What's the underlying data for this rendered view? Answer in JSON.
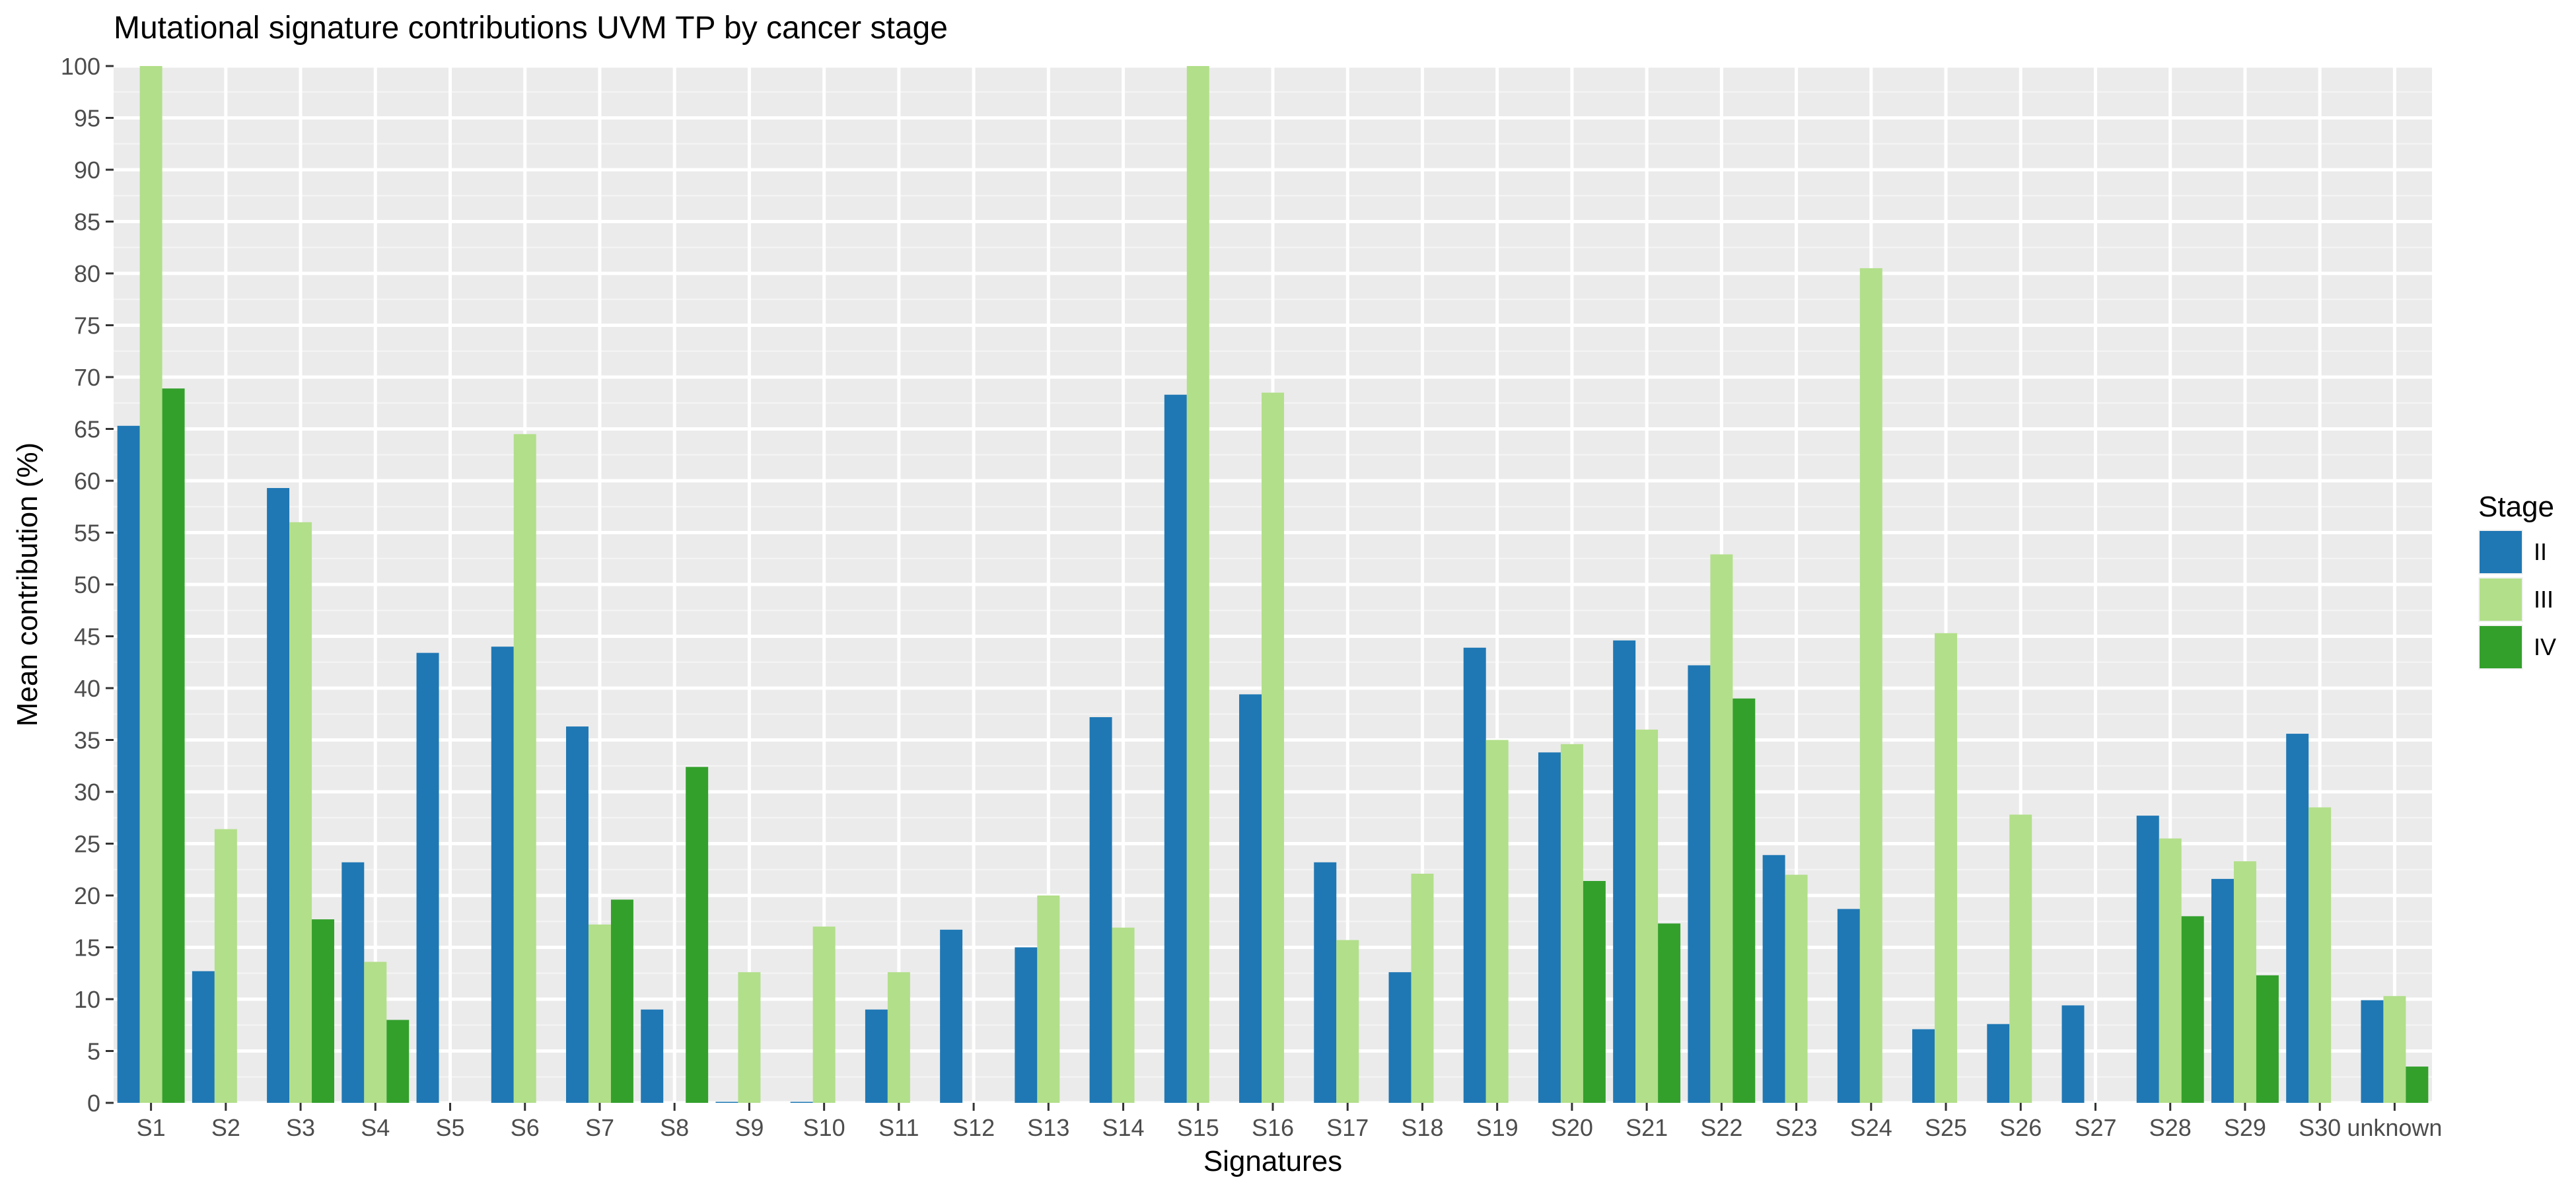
{
  "chart_data": {
    "type": "bar",
    "title": "Mutational signature contributions UVM TP by cancer stage",
    "xlabel": "Signatures",
    "ylabel": "Mean contribution (%)",
    "ylim": [
      0,
      100
    ],
    "yticks": [
      0,
      5,
      10,
      15,
      20,
      25,
      30,
      35,
      40,
      45,
      50,
      55,
      60,
      65,
      70,
      75,
      80,
      85,
      90,
      95,
      100
    ],
    "categories": [
      "S1",
      "S2",
      "S3",
      "S4",
      "S5",
      "S6",
      "S7",
      "S8",
      "S9",
      "S10",
      "S11",
      "S12",
      "S13",
      "S14",
      "S15",
      "S16",
      "S17",
      "S18",
      "S19",
      "S20",
      "S21",
      "S22",
      "S23",
      "S24",
      "S25",
      "S26",
      "S27",
      "S28",
      "S29",
      "S30",
      "unknown"
    ],
    "legend_title": "Stage",
    "legend_position": "right",
    "grid": true,
    "series": [
      {
        "name": "II",
        "color": "#1F78B4",
        "values": [
          65.3,
          12.7,
          59.3,
          23.2,
          43.4,
          44.0,
          36.3,
          9.0,
          0.1,
          0.1,
          9.0,
          16.7,
          15.0,
          37.2,
          68.3,
          39.4,
          23.2,
          12.6,
          43.9,
          33.8,
          44.6,
          42.2,
          23.9,
          18.7,
          7.1,
          7.6,
          9.4,
          27.7,
          21.6,
          35.6,
          9.9
        ]
      },
      {
        "name": "III",
        "color": "#B2DF8A",
        "values": [
          100,
          26.4,
          56.0,
          13.6,
          0,
          64.5,
          17.2,
          0,
          12.6,
          17.0,
          12.6,
          0,
          20.0,
          16.9,
          100,
          68.5,
          15.7,
          22.1,
          35.0,
          34.6,
          36.0,
          52.9,
          22.0,
          80.5,
          45.3,
          27.8,
          0,
          25.5,
          23.3,
          28.5,
          10.3
        ]
      },
      {
        "name": "IV",
        "color": "#33A02C",
        "values": [
          68.9,
          0,
          17.7,
          8.0,
          0,
          0,
          19.6,
          32.4,
          0,
          0,
          0,
          0,
          0,
          0,
          0,
          0,
          0,
          0,
          0,
          21.4,
          17.3,
          39.0,
          0,
          0,
          0,
          0,
          0,
          18.0,
          12.3,
          0,
          3.5
        ]
      }
    ]
  }
}
